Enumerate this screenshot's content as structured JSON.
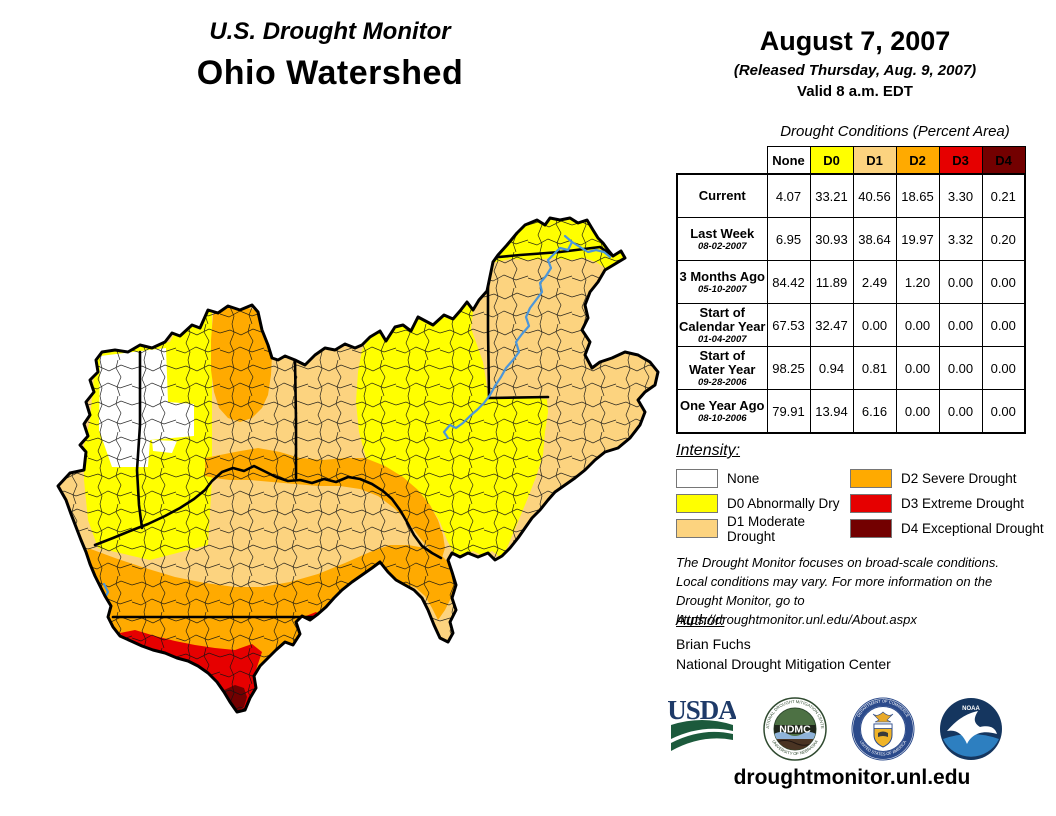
{
  "header": {
    "monitor_title": "U.S. Drought Monitor",
    "region_title": "Ohio Watershed",
    "date": "August 7, 2007",
    "released": "(Released Thursday, Aug. 9, 2007)",
    "valid": "Valid 8 a.m. EDT"
  },
  "table": {
    "caption": "Drought Conditions (Percent Area)",
    "columns": [
      "None",
      "D0",
      "D1",
      "D2",
      "D3",
      "D4"
    ],
    "column_colors": [
      "#FFFFFF",
      "#FFFF00",
      "#FCD37F",
      "#FFAA00",
      "#E60000",
      "#730000"
    ],
    "rows": [
      {
        "label_lines": [
          "Current"
        ],
        "date": "",
        "values": [
          "4.07",
          "33.21",
          "40.56",
          "18.65",
          "3.30",
          "0.21"
        ]
      },
      {
        "label_lines": [
          "Last Week"
        ],
        "date": "08-02-2007",
        "values": [
          "6.95",
          "30.93",
          "38.64",
          "19.97",
          "3.32",
          "0.20"
        ]
      },
      {
        "label_lines": [
          "3 Months Ago"
        ],
        "date": "05-10-2007",
        "values": [
          "84.42",
          "11.89",
          "2.49",
          "1.20",
          "0.00",
          "0.00"
        ]
      },
      {
        "label_lines": [
          "Start of",
          "Calendar Year"
        ],
        "date": "01-04-2007",
        "values": [
          "67.53",
          "32.47",
          "0.00",
          "0.00",
          "0.00",
          "0.00"
        ]
      },
      {
        "label_lines": [
          "Start of",
          "Water Year"
        ],
        "date": "09-28-2006",
        "values": [
          "98.25",
          "0.94",
          "0.81",
          "0.00",
          "0.00",
          "0.00"
        ]
      },
      {
        "label_lines": [
          "One Year Ago"
        ],
        "date": "08-10-2006",
        "values": [
          "79.91",
          "13.94",
          "6.16",
          "0.00",
          "0.00",
          "0.00"
        ]
      }
    ]
  },
  "legend": {
    "heading": "Intensity:",
    "items": [
      {
        "label": "None",
        "color": "#FFFFFF"
      },
      {
        "label": "D0 Abnormally Dry",
        "color": "#FFFF00"
      },
      {
        "label": "D1 Moderate Drought",
        "color": "#FCD37F"
      },
      {
        "label": "D2 Severe Drought",
        "color": "#FFAA00"
      },
      {
        "label": "D3 Extreme Drought",
        "color": "#E60000"
      },
      {
        "label": "D4 Exceptional Drought",
        "color": "#730000"
      }
    ]
  },
  "notes": {
    "line1": "The Drought Monitor focuses on broad-scale conditions.",
    "line2": "Local conditions may vary. For more information on the",
    "line3": "Drought Monitor, go to https://droughtmonitor.unl.edu/About.aspx"
  },
  "author": {
    "heading": "Author:",
    "name": "Brian Fuchs",
    "org": "National Drought Mitigation Center"
  },
  "footer": {
    "url": "droughtmonitor.unl.edu"
  },
  "logos": {
    "usda_text": "USDA",
    "ndmc_text": "NDMC",
    "ndmc_ring_top": "NATIONAL DROUGHT MITIGATION CENTER",
    "ndmc_ring_bottom": "UNIVERSITY OF NEBRASKA",
    "doc_ring_top": "DEPARTMENT OF COMMERCE",
    "doc_ring_bottom": "UNITED STATES OF AMERICA",
    "noaa_text": "NOAA"
  },
  "map_colors": {
    "none": "#FFFFFF",
    "d0": "#FFFF00",
    "d1": "#FCD37F",
    "d2": "#FFAA00",
    "d3": "#E60000",
    "d4": "#730000",
    "river": "#4C96D9",
    "boundary": "#000000"
  }
}
